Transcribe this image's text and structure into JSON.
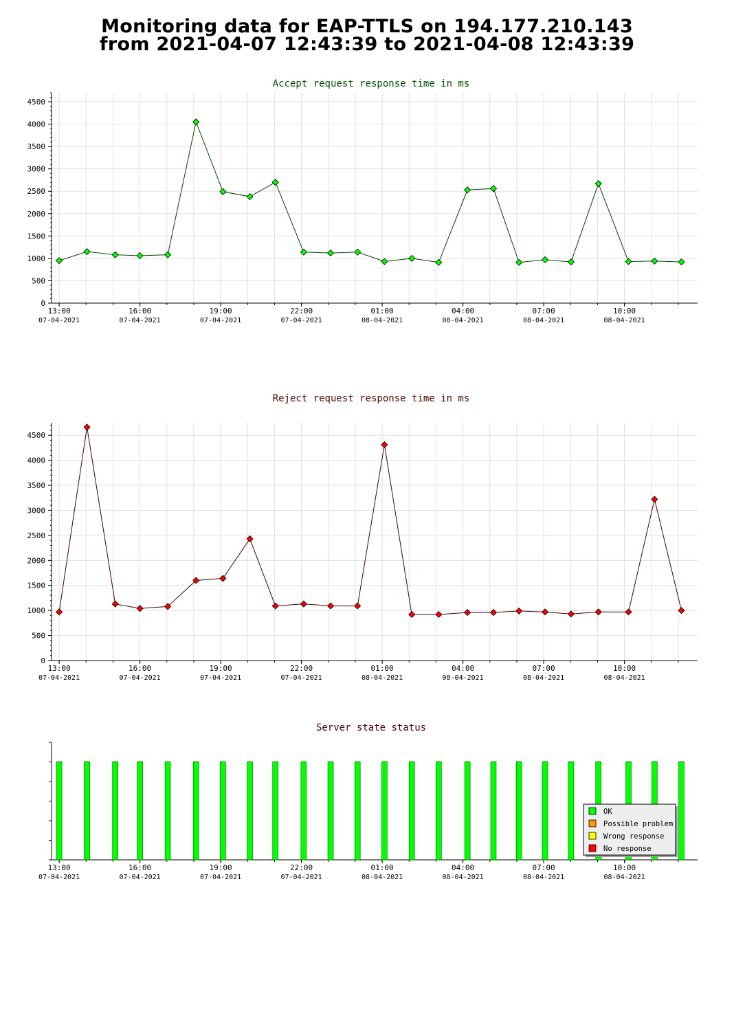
{
  "page": {
    "title_line1": "Monitoring data for EAP-TTLS on 194.177.210.143",
    "title_line2": "from 2021-04-07 12:43:39 to 2021-04-08 12:43:39"
  },
  "colors": {
    "accept_title": "#005000",
    "reject_title": "#500000",
    "state_title": "#500000",
    "accept_marker": "#00ff00",
    "reject_marker": "#ff0000",
    "accept_line": "#004000",
    "reject_line": "#400000",
    "grid": "#e0e0e0",
    "legend_ok": "#00ff00",
    "legend_possible": "#ff9900",
    "legend_wrong": "#ffff00",
    "legend_none": "#ff0000"
  },
  "chart_data": [
    {
      "id": "accept",
      "type": "line",
      "title": "Accept request response time in ms",
      "xlabel": "",
      "ylabel": "",
      "xlim": [
        "2021-04-07 12:43",
        "2021-04-08 12:43"
      ],
      "ylim": [
        0,
        4700
      ],
      "yticks": [
        0,
        500,
        1000,
        1500,
        2000,
        2500,
        3000,
        3500,
        4000,
        4500
      ],
      "xticks": [
        {
          "time": "13:00",
          "date": "07-04-2021"
        },
        {
          "time": "16:00",
          "date": "07-04-2021"
        },
        {
          "time": "19:00",
          "date": "07-04-2021"
        },
        {
          "time": "22:00",
          "date": "07-04-2021"
        },
        {
          "time": "01:00",
          "date": "08-04-2021"
        },
        {
          "time": "04:00",
          "date": "08-04-2021"
        },
        {
          "time": "07:00",
          "date": "08-04-2021"
        },
        {
          "time": "10:00",
          "date": "08-04-2021"
        }
      ],
      "grid": true,
      "series": [
        {
          "x": [
            "2021-04-07 13:00",
            "2021-04-07 14:02",
            "2021-04-07 15:05",
            "2021-04-07 16:00",
            "2021-04-07 17:02",
            "2021-04-07 18:05",
            "2021-04-07 19:05",
            "2021-04-07 20:05",
            "2021-04-07 21:02",
            "2021-04-07 22:05",
            "2021-04-07 23:05",
            "2021-04-08 00:05",
            "2021-04-08 01:05",
            "2021-04-08 02:06",
            "2021-04-08 03:06",
            "2021-04-08 04:10",
            "2021-04-08 05:08",
            "2021-04-08 06:05",
            "2021-04-08 07:03",
            "2021-04-08 08:01",
            "2021-04-08 09:02",
            "2021-04-08 10:09",
            "2021-04-08 11:07",
            "2021-04-08 12:07"
          ],
          "values": [
            950,
            1150,
            1080,
            1060,
            1080,
            4050,
            2490,
            2380,
            2700,
            1140,
            1120,
            1140,
            930,
            1000,
            910,
            2530,
            2560,
            910,
            970,
            920,
            2670,
            930,
            940,
            920
          ]
        }
      ]
    },
    {
      "id": "reject",
      "type": "line",
      "title": "Reject request response time in ms",
      "xlabel": "",
      "ylabel": "",
      "xlim": [
        "2021-04-07 12:43",
        "2021-04-08 12:43"
      ],
      "ylim": [
        0,
        4750
      ],
      "yticks": [
        0,
        500,
        1000,
        1500,
        2000,
        2500,
        3000,
        3500,
        4000,
        4500
      ],
      "xticks": [
        {
          "time": "13:00",
          "date": "07-04-2021"
        },
        {
          "time": "16:00",
          "date": "07-04-2021"
        },
        {
          "time": "19:00",
          "date": "07-04-2021"
        },
        {
          "time": "22:00",
          "date": "07-04-2021"
        },
        {
          "time": "01:00",
          "date": "08-04-2021"
        },
        {
          "time": "04:00",
          "date": "08-04-2021"
        },
        {
          "time": "07:00",
          "date": "08-04-2021"
        },
        {
          "time": "10:00",
          "date": "08-04-2021"
        }
      ],
      "grid": true,
      "series": [
        {
          "x": [
            "2021-04-07 13:00",
            "2021-04-07 14:02",
            "2021-04-07 15:05",
            "2021-04-07 16:00",
            "2021-04-07 17:02",
            "2021-04-07 18:05",
            "2021-04-07 19:05",
            "2021-04-07 20:05",
            "2021-04-07 21:02",
            "2021-04-07 22:05",
            "2021-04-07 23:05",
            "2021-04-08 00:05",
            "2021-04-08 01:05",
            "2021-04-08 02:06",
            "2021-04-08 03:06",
            "2021-04-08 04:10",
            "2021-04-08 05:08",
            "2021-04-08 06:05",
            "2021-04-08 07:03",
            "2021-04-08 08:01",
            "2021-04-08 09:02",
            "2021-04-08 10:09",
            "2021-04-08 11:07",
            "2021-04-08 12:07"
          ],
          "values": [
            970,
            4660,
            1130,
            1040,
            1080,
            1600,
            1640,
            2430,
            1090,
            1130,
            1090,
            1090,
            4310,
            920,
            920,
            960,
            960,
            990,
            970,
            930,
            970,
            970,
            3220,
            1000
          ]
        }
      ]
    },
    {
      "id": "state",
      "type": "bar",
      "title": "Server state status",
      "xlabel": "",
      "ylabel": "",
      "xlim": [
        "2021-04-07 12:43",
        "2021-04-08 12:43"
      ],
      "xticks": [
        {
          "time": "13:00",
          "date": "07-04-2021"
        },
        {
          "time": "16:00",
          "date": "07-04-2021"
        },
        {
          "time": "19:00",
          "date": "07-04-2021"
        },
        {
          "time": "22:00",
          "date": "07-04-2021"
        },
        {
          "time": "01:00",
          "date": "08-04-2021"
        },
        {
          "time": "04:00",
          "date": "08-04-2021"
        },
        {
          "time": "07:00",
          "date": "08-04-2021"
        },
        {
          "time": "10:00",
          "date": "08-04-2021"
        }
      ],
      "x": [
        "2021-04-07 13:00",
        "2021-04-07 14:02",
        "2021-04-07 15:05",
        "2021-04-07 16:00",
        "2021-04-07 17:02",
        "2021-04-07 18:05",
        "2021-04-07 19:05",
        "2021-04-07 20:05",
        "2021-04-07 21:02",
        "2021-04-07 22:05",
        "2021-04-07 23:05",
        "2021-04-08 00:05",
        "2021-04-08 01:05",
        "2021-04-08 02:06",
        "2021-04-08 03:06",
        "2021-04-08 04:10",
        "2021-04-08 05:08",
        "2021-04-08 06:05",
        "2021-04-08 07:03",
        "2021-04-08 08:01",
        "2021-04-08 09:02",
        "2021-04-08 10:09",
        "2021-04-08 11:07",
        "2021-04-08 12:07"
      ],
      "states": [
        "OK",
        "OK",
        "OK",
        "OK",
        "OK",
        "OK",
        "OK",
        "OK",
        "OK",
        "OK",
        "OK",
        "OK",
        "OK",
        "OK",
        "OK",
        "OK",
        "OK",
        "OK",
        "OK",
        "OK",
        "OK",
        "OK",
        "OK",
        "OK"
      ],
      "legend": {
        "position": "bottom-right",
        "items": [
          {
            "label": "OK",
            "color": "#00ff00"
          },
          {
            "label": "Possible problem",
            "color": "#ff9900"
          },
          {
            "label": "Wrong response",
            "color": "#ffff00"
          },
          {
            "label": "No response",
            "color": "#ff0000"
          }
        ]
      }
    }
  ]
}
